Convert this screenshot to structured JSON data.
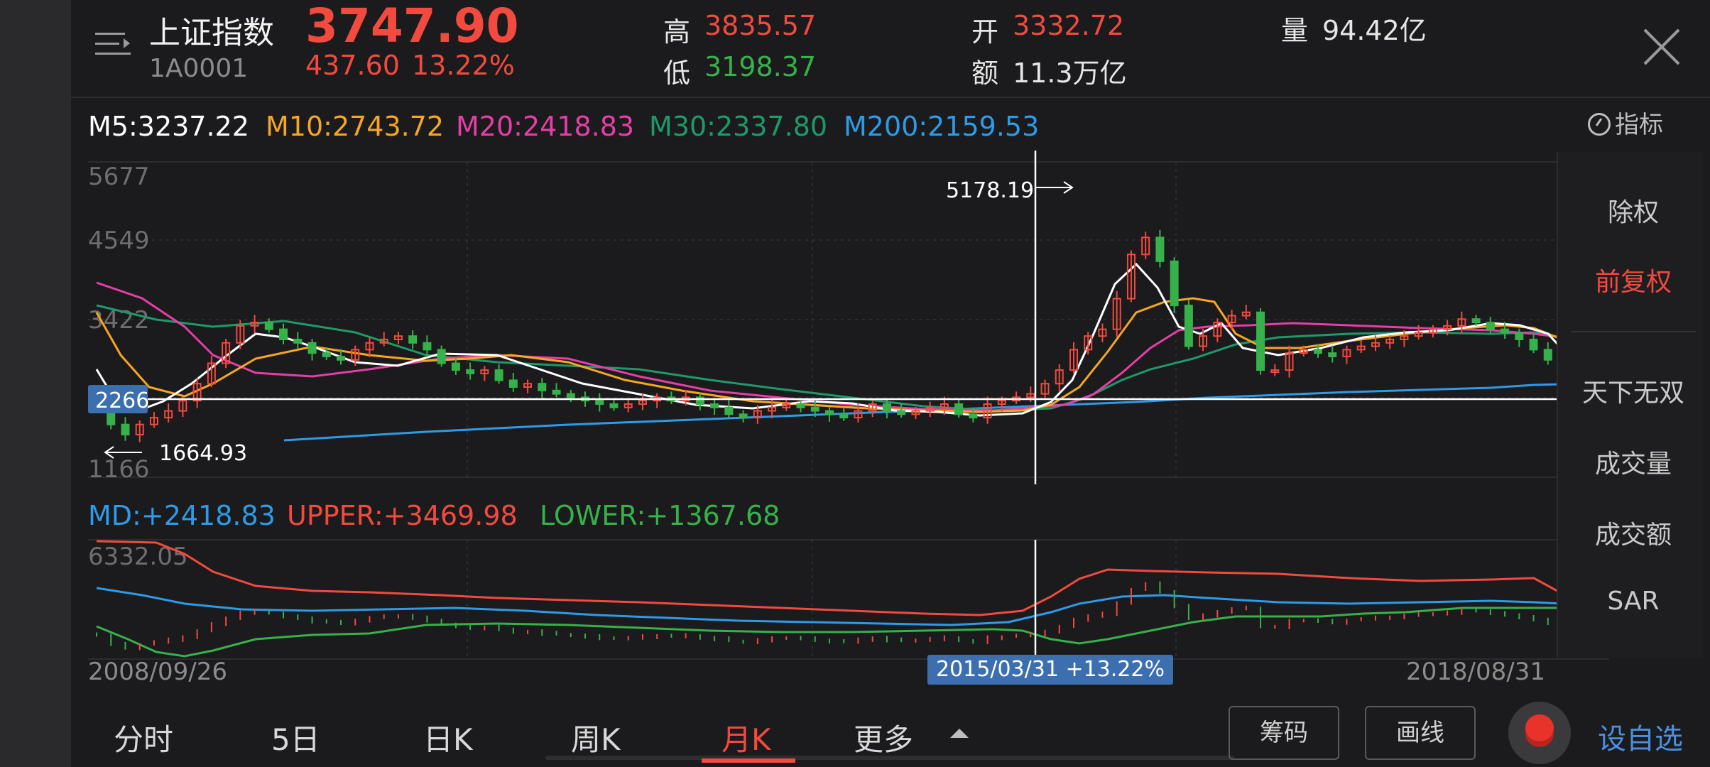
{
  "header": {
    "stock_name": "上证指数",
    "stock_code": "1A0001",
    "price": "3747.90",
    "change": "437.60",
    "change_pct": "13.22%",
    "high_label": "高",
    "high_value": "3835.57",
    "low_label": "低",
    "low_value": "3198.37",
    "open_label": "开",
    "open_value": "3332.72",
    "amount_label": "额",
    "amount_value": "11.3万亿",
    "volume_label": "量",
    "volume_value": "94.42亿"
  },
  "ma_legend": {
    "m5": "M5:3237.22",
    "m10": "M10:2743.72",
    "m20": "M20:2418.83",
    "m30": "M30:2337.80",
    "m200": "M200:2159.53"
  },
  "indicator_button": "指标",
  "side_menu": {
    "items": [
      "除权",
      "前复权",
      "天下无双",
      "成交量",
      "成交额",
      "SAR"
    ],
    "active": "前复权"
  },
  "boll_legend": {
    "md": "MD:+2418.83",
    "upper": "UPPER:+3469.98",
    "lower": "LOWER:+1367.68"
  },
  "dates": {
    "start": "2008/09/26",
    "end": "2018/08/31",
    "cursor_label": "2015/03/31  +13.22%"
  },
  "tabs": [
    "分时",
    "5日",
    "日K",
    "周K",
    "月K",
    "更多"
  ],
  "active_tab": "月K",
  "buttons": {
    "chips": "筹码",
    "draw": "画线",
    "add_watch": "设自选"
  },
  "colors": {
    "up": "#f24a3f",
    "down": "#37b14a",
    "m5": "#ffffff",
    "m10": "#f5a623",
    "m20": "#e43fa6",
    "m30": "#1e9a6a",
    "m200": "#2d9be8",
    "accent": "#4a8fe0"
  },
  "chart_data": {
    "type": "candlestick",
    "period": "monthly",
    "y_labels": [
      "5677",
      "4549",
      "3422",
      "2266",
      "1166"
    ],
    "y_range": [
      1166,
      5677
    ],
    "crosshair_price": "2266",
    "max_label": "5178.19",
    "min_label": "1664.93",
    "sub_chart": {
      "type": "BOLL",
      "top_label": "6332.05"
    },
    "close_series_approx": [
      2300,
      1900,
      1750,
      1900,
      2000,
      2100,
      2250,
      2500,
      2800,
      3100,
      3350,
      3400,
      3300,
      3150,
      3100,
      2950,
      2900,
      2850,
      3000,
      3100,
      3150,
      3200,
      3100,
      3000,
      2800,
      2700,
      2650,
      2700,
      2550,
      2450,
      2500,
      2400,
      2350,
      2300,
      2250,
      2200,
      2150,
      2200,
      2250,
      2300,
      2250,
      2300,
      2200,
      2150,
      2050,
      2000,
      2100,
      2150,
      2200,
      2150,
      2100,
      2050,
      2000,
      2100,
      2200,
      2100,
      2050,
      2100,
      2150,
      2200,
      2050,
      2000,
      2200,
      2250,
      2300,
      2350,
      2500,
      2700,
      3000,
      3200,
      3300,
      3750,
      4400,
      4650,
      4300,
      3650,
      3050,
      3200,
      3400,
      3500,
      3550,
      2700,
      2700,
      2950,
      3000,
      2950,
      2900,
      3000,
      3050,
      3100,
      3150,
      3200,
      3250,
      3300,
      3350,
      3450,
      3400,
      3300,
      3250,
      3150,
      3000,
      2850,
      2750
    ]
  }
}
